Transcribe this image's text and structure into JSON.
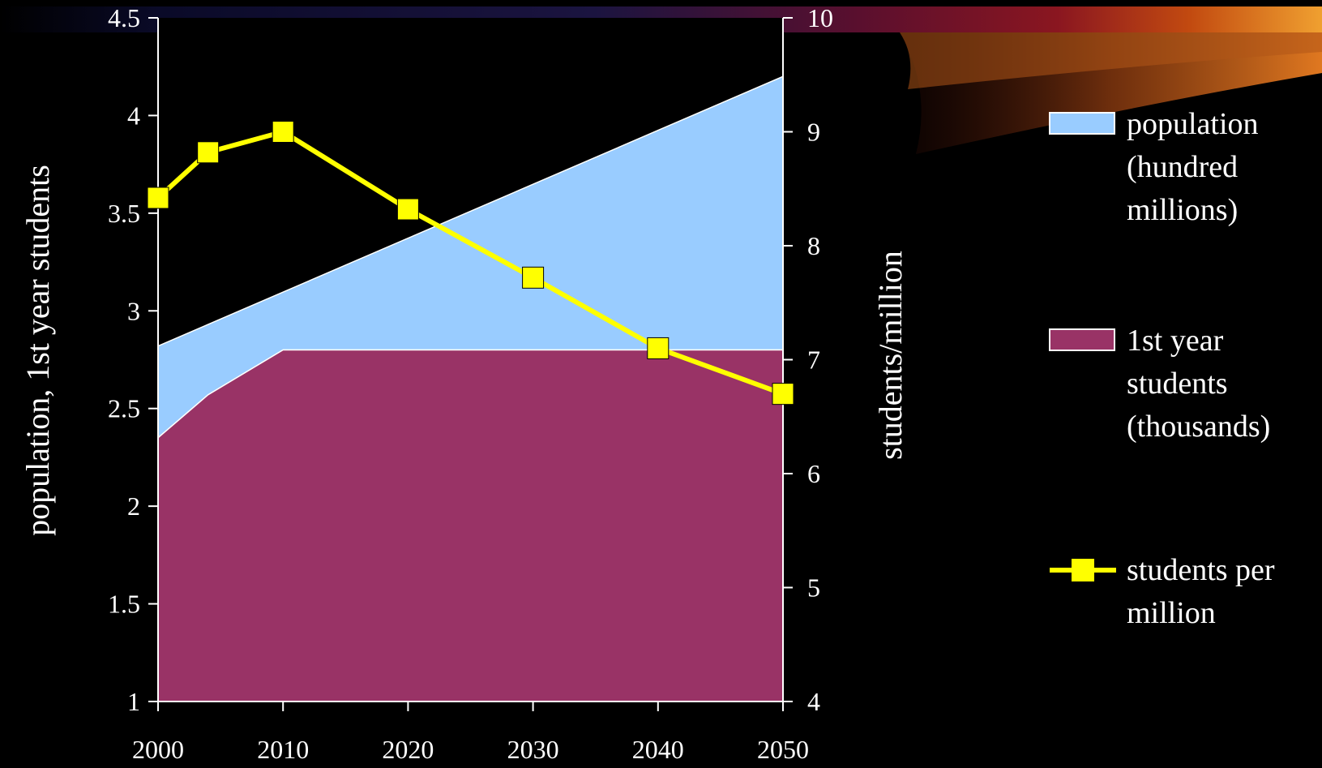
{
  "chart_data": {
    "type": "area",
    "x": [
      2000,
      2004,
      2010,
      2020,
      2030,
      2040,
      2050
    ],
    "x_ticks": [
      "2000",
      "2010",
      "2020",
      "2030",
      "2040",
      "2050"
    ],
    "y_left_ticks": [
      "1",
      "1.5",
      "2",
      "2.5",
      "3",
      "3.5",
      "4",
      "4.5"
    ],
    "y_right_ticks": [
      "4",
      "5",
      "6",
      "7",
      "8",
      "9",
      "10"
    ],
    "ylabel_left": "population, 1st year students",
    "ylabel_right": "students/million",
    "ylim_left": [
      1,
      4.5
    ],
    "ylim_right": [
      4,
      10
    ],
    "xlim": [
      2000,
      2050
    ],
    "grid": false,
    "legend_position": "right",
    "series": [
      {
        "name": "population (hundred millions)",
        "legend_lines": [
          "population",
          "(hundred",
          "millions)"
        ],
        "kind": "area",
        "axis": "left",
        "color": "#99ccff",
        "x": [
          2000,
          2050
        ],
        "values": [
          2.82,
          4.2
        ]
      },
      {
        "name": "1st year students (thousands)",
        "legend_lines": [
          "1st year",
          "students",
          "(thousands)"
        ],
        "kind": "area",
        "axis": "left",
        "color": "#993366",
        "x": [
          2000,
          2004,
          2010,
          2020,
          2030,
          2040,
          2050
        ],
        "values": [
          2.35,
          2.57,
          2.8,
          2.8,
          2.8,
          2.8,
          2.8
        ]
      },
      {
        "name": "students per million",
        "legend_lines": [
          "students per",
          "million"
        ],
        "kind": "line",
        "axis": "right",
        "color": "#ffff00",
        "x": [
          2000,
          2004,
          2010,
          2020,
          2030,
          2040,
          2050
        ],
        "values": [
          8.42,
          8.82,
          9.0,
          8.32,
          7.72,
          7.1,
          6.7
        ]
      }
    ]
  }
}
